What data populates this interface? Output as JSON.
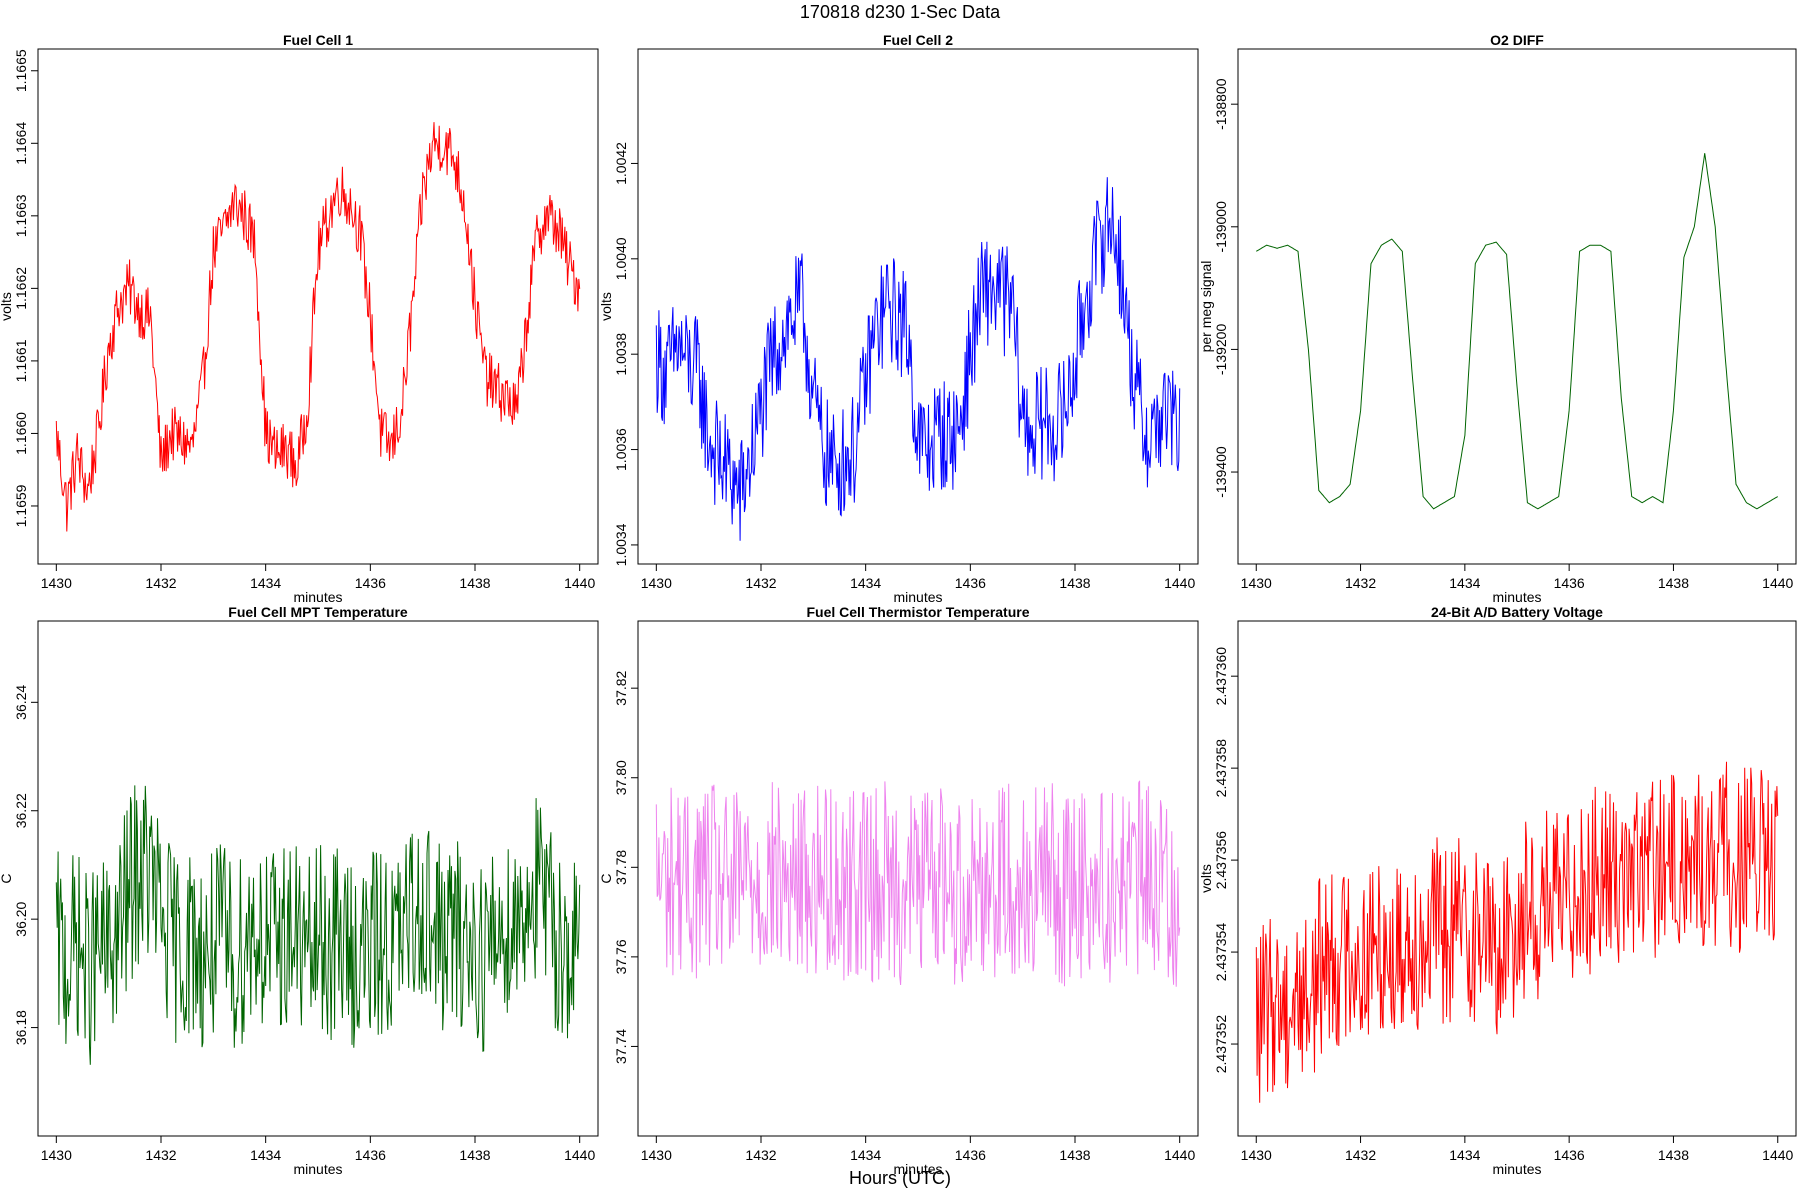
{
  "page": {
    "title": "170818   d230   1-Sec Data",
    "footer": "Hours (UTC)"
  },
  "chart_data": [
    {
      "type": "line",
      "title": "Fuel Cell 1",
      "xlabel": "minutes",
      "ylabel": "volts",
      "color": "#ff0000",
      "xlim": [
        1429.65,
        1440.35
      ],
      "ylim": [
        1.16582,
        1.16653
      ],
      "xticks": [
        1430,
        1432,
        1434,
        1436,
        1438,
        1440
      ],
      "yticks": [
        1.1659,
        1.166,
        1.1661,
        1.1662,
        1.1663,
        1.1664,
        1.1665
      ],
      "ytick_labels": [
        "1.1659",
        "1.1660",
        "1.1661",
        "1.1662",
        "1.1663",
        "1.1664",
        "1.1665"
      ],
      "series": [
        {
          "name": "Fuel Cell 1",
          "x": [
            1430.0,
            1430.2,
            1430.4,
            1430.6,
            1430.8,
            1431.0,
            1431.2,
            1431.4,
            1431.6,
            1431.8,
            1432.0,
            1432.2,
            1432.4,
            1432.6,
            1432.8,
            1433.0,
            1433.2,
            1433.4,
            1433.6,
            1433.8,
            1434.0,
            1434.2,
            1434.4,
            1434.6,
            1434.8,
            1435.0,
            1435.2,
            1435.4,
            1435.6,
            1435.8,
            1436.0,
            1436.2,
            1436.4,
            1436.6,
            1436.8,
            1437.0,
            1437.2,
            1437.4,
            1437.6,
            1437.8,
            1438.0,
            1438.2,
            1438.4,
            1438.6,
            1438.8,
            1439.0,
            1439.2,
            1439.4,
            1439.6,
            1439.8,
            1440.0
          ],
          "values": [
            1.166,
            1.1659,
            1.16597,
            1.16592,
            1.166,
            1.16612,
            1.16618,
            1.1662,
            1.16617,
            1.16616,
            1.16596,
            1.166,
            1.16599,
            1.16598,
            1.16607,
            1.16625,
            1.16628,
            1.16632,
            1.1663,
            1.16626,
            1.166,
            1.16597,
            1.16598,
            1.16595,
            1.16604,
            1.16625,
            1.1663,
            1.16634,
            1.16632,
            1.16628,
            1.16616,
            1.166,
            1.16598,
            1.16603,
            1.16617,
            1.16633,
            1.1664,
            1.1664,
            1.16638,
            1.16632,
            1.16618,
            1.16608,
            1.16606,
            1.16605,
            1.16603,
            1.16616,
            1.16628,
            1.1663,
            1.16628,
            1.16623,
            1.1662
          ]
        }
      ]
    },
    {
      "type": "line",
      "title": "Fuel Cell 2",
      "xlabel": "minutes",
      "ylabel": "volts",
      "color": "#0000ff",
      "xlim": [
        1429.65,
        1440.35
      ],
      "ylim": [
        1.00336,
        1.00444
      ],
      "xticks": [
        1430,
        1432,
        1434,
        1436,
        1438,
        1440
      ],
      "yticks": [
        1.0034,
        1.0036,
        1.0038,
        1.004,
        1.0042
      ],
      "ytick_labels": [
        "1.0034",
        "1.0036",
        "1.0038",
        "1.0040",
        "1.0042"
      ],
      "series": [
        {
          "name": "Fuel Cell 2",
          "x": [
            1430.0,
            1430.2,
            1430.4,
            1430.6,
            1430.8,
            1431.0,
            1431.2,
            1431.4,
            1431.6,
            1431.8,
            1432.0,
            1432.2,
            1432.4,
            1432.6,
            1432.8,
            1433.0,
            1433.2,
            1433.4,
            1433.6,
            1433.8,
            1434.0,
            1434.2,
            1434.4,
            1434.6,
            1434.8,
            1435.0,
            1435.2,
            1435.4,
            1435.6,
            1435.8,
            1436.0,
            1436.2,
            1436.4,
            1436.6,
            1436.8,
            1437.0,
            1437.2,
            1437.4,
            1437.6,
            1437.8,
            1438.0,
            1438.2,
            1438.4,
            1438.6,
            1438.8,
            1439.0,
            1439.2,
            1439.4,
            1439.6,
            1439.8,
            1440.0
          ],
          "values": [
            1.0038,
            1.00375,
            1.00382,
            1.00378,
            1.00376,
            1.00362,
            1.00358,
            1.00355,
            1.0035,
            1.00358,
            1.00368,
            1.00378,
            1.00384,
            1.00388,
            1.0039,
            1.0037,
            1.0036,
            1.00356,
            1.00358,
            1.0036,
            1.00375,
            1.00385,
            1.0039,
            1.00388,
            1.00385,
            1.00362,
            1.0036,
            1.00364,
            1.00362,
            1.00365,
            1.0038,
            1.00392,
            1.00394,
            1.00392,
            1.0039,
            1.00366,
            1.00364,
            1.00366,
            1.00365,
            1.00368,
            1.00378,
            1.00392,
            1.004,
            1.00408,
            1.00405,
            1.00385,
            1.0037,
            1.00362,
            1.00366,
            1.00368,
            1.00362
          ]
        }
      ]
    },
    {
      "type": "line",
      "title": "O2 DIFF",
      "xlabel": "minutes",
      "ylabel": "per meg signal",
      "color": "#006400",
      "xlim": [
        1429.65,
        1440.35
      ],
      "ylim": [
        -139550,
        -138710
      ],
      "xticks": [
        1430,
        1432,
        1434,
        1436,
        1438,
        1440
      ],
      "yticks": [
        -139400,
        -139200,
        -139000,
        -138800
      ],
      "ytick_labels": [
        "-139400",
        "-139200",
        "-139000",
        "-138800"
      ],
      "series": [
        {
          "name": "O2 DIFF",
          "x": [
            1430.0,
            1430.2,
            1430.4,
            1430.6,
            1430.8,
            1431.0,
            1431.2,
            1431.4,
            1431.6,
            1431.8,
            1432.0,
            1432.2,
            1432.4,
            1432.6,
            1432.8,
            1433.0,
            1433.2,
            1433.4,
            1433.6,
            1433.8,
            1434.0,
            1434.2,
            1434.4,
            1434.6,
            1434.8,
            1435.0,
            1435.2,
            1435.4,
            1435.6,
            1435.8,
            1436.0,
            1436.2,
            1436.4,
            1436.6,
            1436.8,
            1437.0,
            1437.2,
            1437.4,
            1437.6,
            1437.8,
            1438.0,
            1438.2,
            1438.4,
            1438.6,
            1438.8,
            1439.0,
            1439.2,
            1439.4,
            1439.6,
            1439.8,
            1440.0
          ],
          "values": [
            -139040,
            -139030,
            -139035,
            -139030,
            -139040,
            -139200,
            -139430,
            -139450,
            -139440,
            -139420,
            -139300,
            -139060,
            -139030,
            -139020,
            -139040,
            -139250,
            -139440,
            -139460,
            -139450,
            -139440,
            -139340,
            -139060,
            -139030,
            -139025,
            -139045,
            -139260,
            -139450,
            -139460,
            -139450,
            -139440,
            -139300,
            -139040,
            -139030,
            -139030,
            -139040,
            -139280,
            -139440,
            -139450,
            -139440,
            -139450,
            -139300,
            -139050,
            -139000,
            -138880,
            -139000,
            -139220,
            -139420,
            -139450,
            -139460,
            -139450,
            -139440
          ]
        }
      ]
    },
    {
      "type": "line",
      "title": "Fuel Cell MPT Temperature",
      "xlabel": "minutes",
      "ylabel": "C",
      "color": "#006400",
      "xlim": [
        1429.65,
        1440.35
      ],
      "ylim": [
        36.16,
        36.255
      ],
      "xticks": [
        1430,
        1432,
        1434,
        1436,
        1438,
        1440
      ],
      "yticks": [
        36.18,
        36.2,
        36.22,
        36.24
      ],
      "ytick_labels": [
        "36.18",
        "36.20",
        "36.22",
        "36.24"
      ],
      "series": [
        {
          "name": "Fuel Cell MPT Temperature",
          "x": [
            1430.0,
            1430.2,
            1430.4,
            1430.6,
            1430.8,
            1431.0,
            1431.2,
            1431.4,
            1431.6,
            1431.8,
            1432.0,
            1432.2,
            1432.4,
            1432.6,
            1432.8,
            1433.0,
            1433.2,
            1433.4,
            1433.6,
            1433.8,
            1434.0,
            1434.2,
            1434.4,
            1434.6,
            1434.8,
            1435.0,
            1435.2,
            1435.4,
            1435.6,
            1435.8,
            1436.0,
            1436.2,
            1436.4,
            1436.6,
            1436.8,
            1437.0,
            1437.2,
            1437.4,
            1437.6,
            1437.8,
            1438.0,
            1438.2,
            1438.4,
            1438.6,
            1438.8,
            1439.0,
            1439.2,
            1439.4,
            1439.6,
            1439.8,
            1440.0
          ],
          "values": [
            36.195,
            36.192,
            36.196,
            36.19,
            36.194,
            36.193,
            36.198,
            36.205,
            36.21,
            36.208,
            36.2,
            36.196,
            36.194,
            36.196,
            36.193,
            36.195,
            36.197,
            36.192,
            36.196,
            36.199,
            36.196,
            36.195,
            36.198,
            36.197,
            36.193,
            36.196,
            36.195,
            36.196,
            36.194,
            36.193,
            36.194,
            36.196,
            36.195,
            36.196,
            36.2,
            36.204,
            36.198,
            36.196,
            36.197,
            36.196,
            36.195,
            36.193,
            36.197,
            36.199,
            36.2,
            36.204,
            36.206,
            36.2,
            36.196,
            36.194,
            36.193
          ]
        }
      ]
    },
    {
      "type": "line",
      "title": "Fuel Cell Thermistor Temperature",
      "xlabel": "minutes",
      "ylabel": "C",
      "color": "#ee82ee",
      "xlim": [
        1429.65,
        1440.35
      ],
      "ylim": [
        37.72,
        37.835
      ],
      "xticks": [
        1430,
        1432,
        1434,
        1436,
        1438,
        1440
      ],
      "yticks": [
        37.74,
        37.76,
        37.78,
        37.8,
        37.82
      ],
      "ytick_labels": [
        "37.74",
        "37.76",
        "37.78",
        "37.80",
        "37.82"
      ],
      "series": [
        {
          "name": "Fuel Cell Thermistor Temperature",
          "x": [
            1430.0,
            1430.2,
            1430.4,
            1430.6,
            1430.8,
            1431.0,
            1431.2,
            1431.4,
            1431.6,
            1431.8,
            1432.0,
            1432.2,
            1432.4,
            1432.6,
            1432.8,
            1433.0,
            1433.2,
            1433.4,
            1433.6,
            1433.8,
            1434.0,
            1434.2,
            1434.4,
            1434.6,
            1434.8,
            1435.0,
            1435.2,
            1435.4,
            1435.6,
            1435.8,
            1436.0,
            1436.2,
            1436.4,
            1436.6,
            1436.8,
            1437.0,
            1437.2,
            1437.4,
            1437.6,
            1437.8,
            1438.0,
            1438.2,
            1438.4,
            1438.6,
            1438.8,
            1439.0,
            1439.2,
            1439.4,
            1439.6,
            1439.8,
            1440.0
          ],
          "values": [
            37.778,
            37.776,
            37.779,
            37.775,
            37.777,
            37.778,
            37.776,
            37.774,
            37.777,
            37.779,
            37.776,
            37.778,
            37.777,
            37.775,
            37.778,
            37.776,
            37.779,
            37.777,
            37.775,
            37.778,
            37.777,
            37.776,
            37.778,
            37.776,
            37.775,
            37.778,
            37.777,
            37.779,
            37.776,
            37.774,
            37.777,
            37.778,
            37.776,
            37.779,
            37.777,
            37.775,
            37.776,
            37.778,
            37.777,
            37.774,
            37.776,
            37.778,
            37.777,
            37.775,
            37.778,
            37.776,
            37.777,
            37.779,
            37.776,
            37.775,
            37.774
          ]
        }
      ]
    },
    {
      "type": "line",
      "title": "24-Bit A/D Battery Voltage",
      "xlabel": "minutes",
      "ylabel": "volts",
      "color": "#ff0000",
      "xlim": [
        1429.65,
        1440.35
      ],
      "ylim": [
        2.43735,
        2.4373612
      ],
      "xticks": [
        1430,
        1432,
        1434,
        1436,
        1438,
        1440
      ],
      "yticks": [
        2.437352,
        2.437354,
        2.437356,
        2.437358,
        2.43736
      ],
      "ytick_labels": [
        "2.437352",
        "2.437354",
        "2.437356",
        "2.437358",
        "2.437360"
      ],
      "series": [
        {
          "name": "24-Bit A/D Battery Voltage",
          "x": [
            1430.0,
            1430.2,
            1430.4,
            1430.6,
            1430.8,
            1431.0,
            1431.2,
            1431.4,
            1431.6,
            1431.8,
            1432.0,
            1432.2,
            1432.4,
            1432.6,
            1432.8,
            1433.0,
            1433.2,
            1433.4,
            1433.6,
            1433.8,
            1434.0,
            1434.2,
            1434.4,
            1434.6,
            1434.8,
            1435.0,
            1435.2,
            1435.4,
            1435.6,
            1435.8,
            1436.0,
            1436.2,
            1436.4,
            1436.6,
            1436.8,
            1437.0,
            1437.2,
            1437.4,
            1437.6,
            1437.8,
            1438.0,
            1438.2,
            1438.4,
            1438.6,
            1438.8,
            1439.0,
            1439.2,
            1439.4,
            1439.6,
            1439.8,
            1440.0
          ],
          "values": [
            2.4373525,
            2.4373527,
            2.437353,
            2.4373528,
            2.4373531,
            2.437353,
            2.4373536,
            2.437354,
            2.4373538,
            2.4373541,
            2.4373538,
            2.437354,
            2.4373542,
            2.4373539,
            2.4373541,
            2.4373544,
            2.4373542,
            2.4373546,
            2.4373543,
            2.4373545,
            2.4373546,
            2.4373544,
            2.4373546,
            2.4373538,
            2.4373542,
            2.4373547,
            2.437355,
            2.4373548,
            2.4373552,
            2.437355,
            2.4373553,
            2.4373556,
            2.4373555,
            2.4373557,
            2.4373556,
            2.4373558,
            2.4373556,
            2.4373558,
            2.4373559,
            2.4373557,
            2.437356,
            2.4373558,
            2.4373561,
            2.4373558,
            2.437356,
            2.4373562,
            2.4373559,
            2.4373561,
            2.437356,
            2.4373559,
            2.4373558
          ]
        }
      ]
    }
  ]
}
